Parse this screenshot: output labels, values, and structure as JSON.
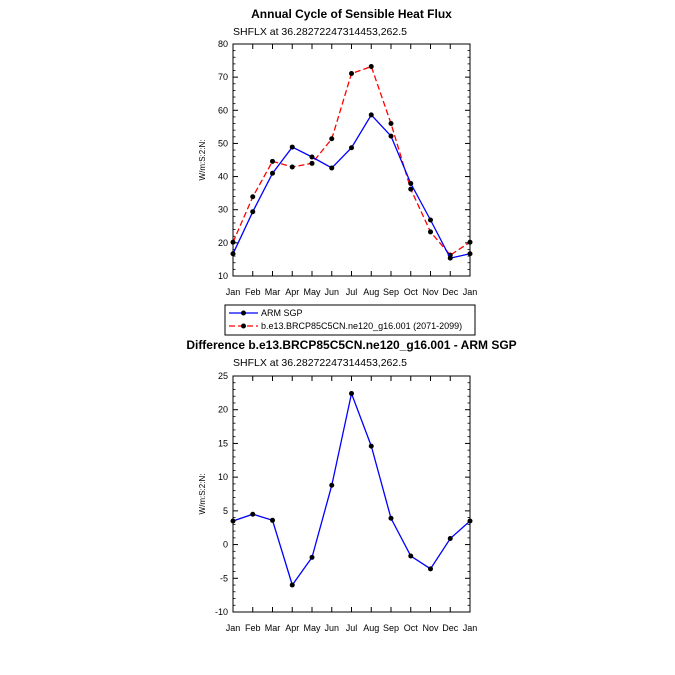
{
  "chart_data": [
    {
      "type": "line",
      "title": "Annual Cycle of Sensible Heat Flux",
      "subtitle": "SHFLX at 36.28272247314453,262.5",
      "ylabel": "W/m:S:2:N:",
      "xlabel": "",
      "ylim": [
        10,
        80
      ],
      "yticks": [
        10,
        20,
        30,
        40,
        50,
        60,
        70,
        80
      ],
      "categories": [
        "Jan",
        "Feb",
        "Mar",
        "Apr",
        "May",
        "Jun",
        "Jul",
        "Aug",
        "Sep",
        "Oct",
        "Nov",
        "Dec",
        "Jan"
      ],
      "series": [
        {
          "name": "ARM SGP",
          "color": "#0000ff",
          "dash": "solid",
          "values": [
            16.7,
            29.4,
            41.0,
            48.9,
            45.9,
            42.6,
            48.7,
            58.6,
            52.2,
            37.9,
            26.9,
            15.4,
            16.7
          ]
        },
        {
          "name": "b.e13.BRCP85C5CN.ne120_g16.001 (2071-2099)",
          "color": "#ff0000",
          "dash": "dashed",
          "values": [
            20.2,
            33.9,
            44.6,
            42.9,
            44.0,
            51.4,
            71.1,
            73.2,
            56.0,
            36.2,
            23.3,
            16.3,
            20.2
          ]
        }
      ],
      "legend": "below"
    },
    {
      "type": "line",
      "title": "Difference b.e13.BRCP85C5CN.ne120_g16.001 - ARM SGP",
      "subtitle": "SHFLX at 36.28272247314453,262.5",
      "ylabel": "W/m:S:2:N:",
      "xlabel": "",
      "ylim": [
        -10,
        25
      ],
      "yticks": [
        -10,
        -5,
        0,
        5,
        10,
        15,
        20,
        25
      ],
      "categories": [
        "Jan",
        "Feb",
        "Mar",
        "Apr",
        "May",
        "Jun",
        "Jul",
        "Aug",
        "Sep",
        "Oct",
        "Nov",
        "Dec",
        "Jan"
      ],
      "series": [
        {
          "name": "Difference",
          "color": "#0000ff",
          "dash": "solid",
          "values": [
            3.5,
            4.5,
            3.6,
            -6.0,
            -1.9,
            8.8,
            22.4,
            14.6,
            3.9,
            -1.7,
            -3.6,
            0.9,
            3.5
          ]
        }
      ]
    }
  ]
}
